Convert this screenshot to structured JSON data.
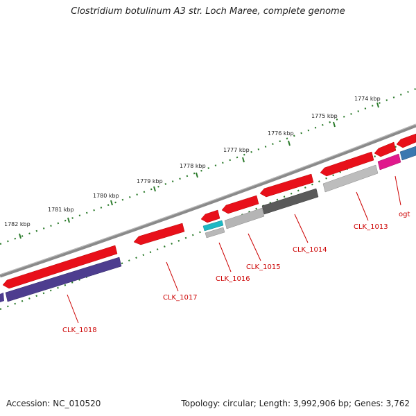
{
  "title": "Clostridium botulinum A3 str. Loch Maree, complete genome",
  "footer": {
    "accession": "Accession: NC_010520",
    "summary": "Topology: circular; Length: 3,992,906 bp; Genes: 3,762"
  },
  "scale_labels": [
    "1774 kbp",
    "1775 kbp",
    "1776 kbp",
    "1777 kbp",
    "1778 kbp",
    "1779 kbp",
    "1780 kbp",
    "1781 kbp",
    "1782 kbp"
  ],
  "gene_labels": [
    "CLK_1013",
    "ogt",
    "CLK_1014",
    "CLK_1015",
    "CLK_1016",
    "CLK_1017",
    "CLK_1018"
  ],
  "colors": {
    "forward_cds": "#e8101a",
    "backbone": "#8c8c8c",
    "scale_ticks": "#2a7a2a",
    "label_red": "#cc0000",
    "clk1018": "#4d3d8f",
    "clk1016": "#1eb8c4",
    "clk1014": "#5a5a5a",
    "clk1015": "#b5b5b5",
    "clk1013": "#bdbdbd",
    "ogt": "#e0198c",
    "right_edge_gene": "#3a78b0"
  }
}
